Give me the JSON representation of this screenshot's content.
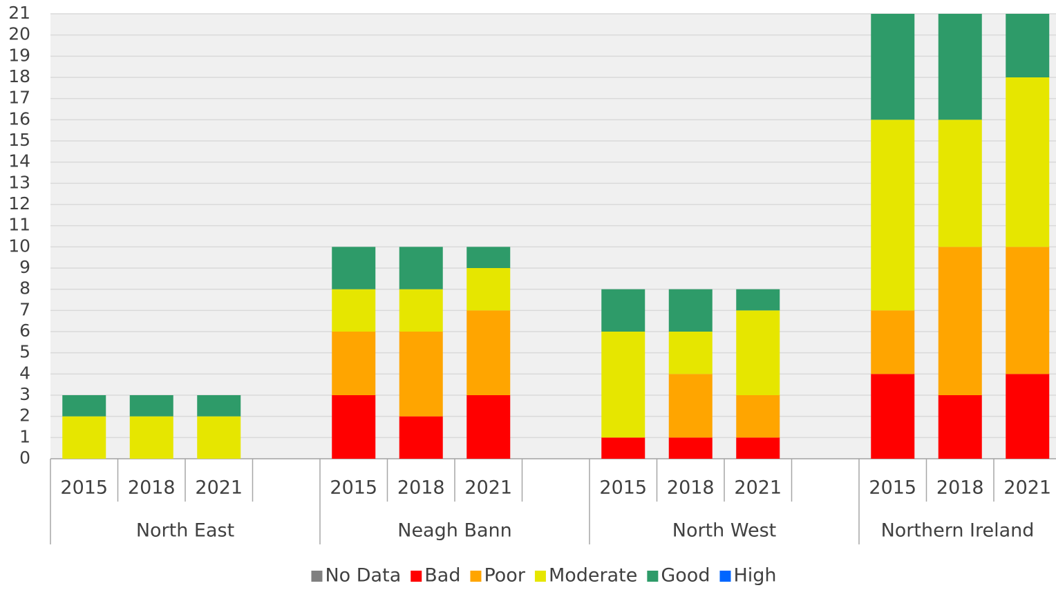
{
  "chart_data": {
    "type": "bar",
    "stacked": true,
    "groups": [
      {
        "name": "North East",
        "categories": [
          "2015",
          "2018",
          "2021",
          null
        ]
      },
      {
        "name": "Neagh Bann",
        "categories": [
          "2015",
          "2018",
          "2021",
          null
        ]
      },
      {
        "name": "North West",
        "categories": [
          "2015",
          "2018",
          "2021",
          null
        ]
      },
      {
        "name": "Northern Ireland",
        "categories": [
          "2015",
          "2018",
          "2021"
        ]
      }
    ],
    "series": [
      {
        "name": "No Data",
        "color": "#808080",
        "values": [
          0,
          0,
          0,
          null,
          0,
          0,
          0,
          null,
          0,
          0,
          0,
          null,
          0,
          0,
          0
        ]
      },
      {
        "name": "Bad",
        "color": "#ff0000",
        "values": [
          0,
          0,
          0,
          null,
          3,
          2,
          3,
          null,
          1,
          1,
          1,
          null,
          4,
          3,
          4
        ]
      },
      {
        "name": "Poor",
        "color": "#ffa500",
        "values": [
          0,
          0,
          0,
          null,
          3,
          4,
          4,
          null,
          0,
          3,
          2,
          null,
          3,
          7,
          6
        ]
      },
      {
        "name": "Moderate",
        "color": "#e6e600",
        "values": [
          2,
          2,
          2,
          null,
          2,
          2,
          2,
          null,
          5,
          2,
          4,
          null,
          9,
          6,
          8
        ]
      },
      {
        "name": "Good",
        "color": "#2e9b69",
        "values": [
          1,
          1,
          1,
          null,
          2,
          2,
          1,
          null,
          2,
          2,
          1,
          null,
          5,
          5,
          3
        ]
      },
      {
        "name": "High",
        "color": "#0066ff",
        "values": [
          0,
          0,
          0,
          null,
          0,
          0,
          0,
          null,
          0,
          0,
          0,
          null,
          0,
          0,
          0
        ]
      }
    ],
    "ylim": [
      0,
      21
    ],
    "yticks": [
      0,
      1,
      2,
      3,
      4,
      5,
      6,
      7,
      8,
      9,
      10,
      11,
      12,
      13,
      14,
      15,
      16,
      17,
      18,
      19,
      20,
      21
    ],
    "grid": true,
    "legend": "bottom"
  }
}
